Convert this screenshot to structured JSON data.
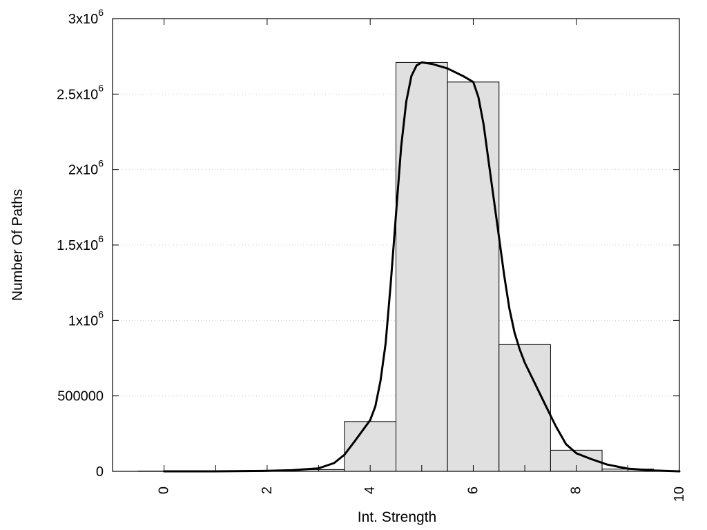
{
  "chart_data": {
    "type": "bar",
    "xlabel": "Int. Strength",
    "ylabel": "Number Of Paths",
    "xlim": [
      -1,
      10
    ],
    "ylim": [
      0,
      3000000
    ],
    "grid": true,
    "x_ticks": [
      0,
      2,
      4,
      6,
      8,
      10
    ],
    "x_tick_labels": [
      "0",
      "2",
      "4",
      "6",
      "8",
      "10"
    ],
    "y_ticks": [
      {
        "value": 0,
        "base": "0",
        "exp": ""
      },
      {
        "value": 500000,
        "base": "500000",
        "exp": ""
      },
      {
        "value": 1000000,
        "base": "1x10",
        "exp": "6"
      },
      {
        "value": 1500000,
        "base": "1.5x10",
        "exp": "6"
      },
      {
        "value": 2000000,
        "base": "2x10",
        "exp": "6"
      },
      {
        "value": 2500000,
        "base": "2.5x10",
        "exp": "6"
      },
      {
        "value": 3000000,
        "base": "3x10",
        "exp": "6"
      }
    ],
    "bin_width": 1,
    "categories": [
      0,
      1,
      2,
      3,
      4,
      5,
      6,
      7,
      8,
      9
    ],
    "values": [
      2000,
      3000,
      5000,
      12000,
      330000,
      2710000,
      2580000,
      840000,
      140000,
      15000
    ],
    "series": [
      {
        "type": "line",
        "x": [
          0,
          1,
          2,
          2.5,
          3,
          3.3,
          3.5,
          3.7,
          4,
          4.1,
          4.2,
          4.3,
          4.4,
          4.5,
          4.6,
          4.7,
          4.8,
          4.9,
          5,
          5.2,
          5.5,
          5.8,
          6,
          6.1,
          6.2,
          6.3,
          6.4,
          6.5,
          6.6,
          6.7,
          6.8,
          6.9,
          7,
          7.2,
          7.4,
          7.6,
          7.8,
          8,
          8.3,
          8.6,
          9,
          9.5,
          10
        ],
        "y": [
          0,
          0,
          3000,
          8000,
          20000,
          55000,
          110000,
          200000,
          340000,
          430000,
          600000,
          850000,
          1250000,
          1700000,
          2150000,
          2450000,
          2620000,
          2690000,
          2710000,
          2700000,
          2670000,
          2620000,
          2580000,
          2480000,
          2300000,
          2050000,
          1800000,
          1550000,
          1300000,
          1080000,
          920000,
          810000,
          720000,
          580000,
          440000,
          300000,
          180000,
          120000,
          80000,
          45000,
          18000,
          6000,
          0
        ]
      }
    ]
  }
}
